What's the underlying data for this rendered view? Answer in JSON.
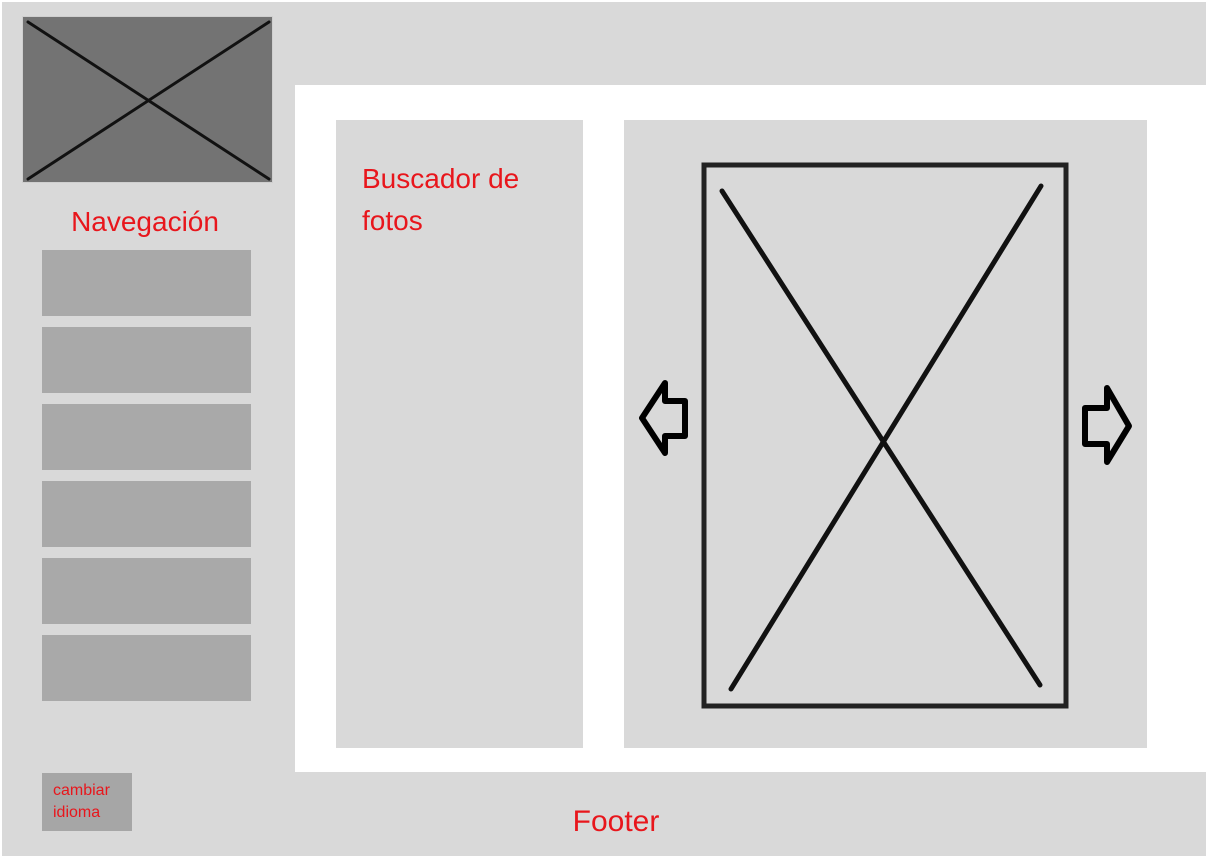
{
  "sidebar": {
    "logo_icon": "image-placeholder-icon",
    "title": "Navegación",
    "items": [
      {
        "label": ""
      },
      {
        "label": ""
      },
      {
        "label": ""
      },
      {
        "label": ""
      },
      {
        "label": ""
      },
      {
        "label": ""
      }
    ],
    "language_button": {
      "label": "cambiar idioma"
    }
  },
  "search": {
    "title": "Buscador de fotos"
  },
  "viewer": {
    "photo_icon": "image-placeholder-icon",
    "prev_icon": "arrow-left-icon",
    "next_icon": "arrow-right-icon"
  },
  "footer": {
    "label": "Footer"
  },
  "colors": {
    "background": "#d9d9d9",
    "content_area": "#ffffff",
    "nav_item": "#a9a9a9",
    "logo_fill": "#737373",
    "accent_text": "#e8161c",
    "outline": "#1a1a1a"
  }
}
